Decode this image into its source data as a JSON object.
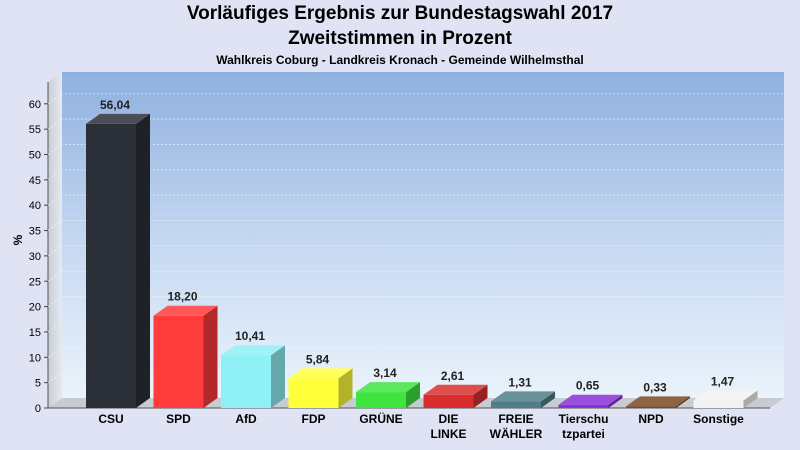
{
  "chart_data": {
    "type": "bar",
    "title": "Vorläufiges Ergebnis zur Bundestagswahl 2017",
    "subtitle": "Zweitstimmen in Prozent",
    "subsubtitle": "Wahlkreis Coburg - Landkreis Kronach - Gemeinde Wilhelmsthal",
    "ylabel": "%",
    "xlabel": "",
    "ylim": [
      0,
      65
    ],
    "yticks": [
      "0",
      "5",
      "10",
      "15",
      "20",
      "25",
      "30",
      "35",
      "40",
      "45",
      "50",
      "55",
      "60"
    ],
    "grid": true,
    "categories": [
      [
        "CSU"
      ],
      [
        "SPD"
      ],
      [
        "AfD"
      ],
      [
        "FDP"
      ],
      [
        "GRÜNE"
      ],
      [
        "DIE",
        "LINKE"
      ],
      [
        "FREIE",
        "WÄHLER"
      ],
      [
        "Tierschu",
        "tzpartei"
      ],
      [
        "NPD"
      ],
      [
        "Sonstige"
      ]
    ],
    "values": [
      56.04,
      18.2,
      10.41,
      5.84,
      3.14,
      2.61,
      1.31,
      0.65,
      0.33,
      1.47
    ],
    "value_labels": [
      "56,04",
      "18,20",
      "10,41",
      "5,84",
      "3,14",
      "2,61",
      "1,31",
      "0,65",
      "0,33",
      "1,47"
    ],
    "colors": [
      "#2b2f38",
      "#ff3b3b",
      "#8ff0f5",
      "#ffff3a",
      "#3fe43f",
      "#d92e2e",
      "#4e7f86",
      "#8b2fd6",
      "#7a4a22",
      "#f2f2f2"
    ]
  }
}
